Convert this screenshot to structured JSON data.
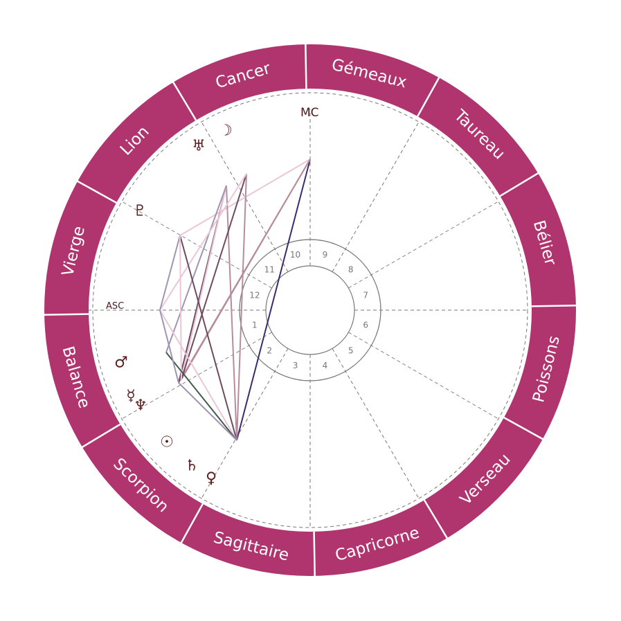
{
  "chart": {
    "ring_color": "#b0356f",
    "signs": [
      "Vierge",
      "Lion",
      "Cancer",
      "Gémeaux",
      "Taureau",
      "Bélier",
      "Poissons",
      "Verseau",
      "Capricorne",
      "Sagittaire",
      "Scorpion",
      "Balance"
    ],
    "houses": [
      "1",
      "2",
      "3",
      "4",
      "5",
      "6",
      "7",
      "8",
      "9",
      "10",
      "11",
      "12"
    ],
    "angles": {
      "asc": "ASC",
      "mc": "MC"
    },
    "planets": [
      {
        "name": "moon",
        "glyph": "☽"
      },
      {
        "name": "uranus",
        "glyph": "♅"
      },
      {
        "name": "pluto",
        "glyph": "♇"
      },
      {
        "name": "mars",
        "glyph": "♂"
      },
      {
        "name": "mercury",
        "glyph": "☿"
      },
      {
        "name": "neptune",
        "glyph": "♆"
      },
      {
        "name": "sun",
        "glyph": "☉"
      },
      {
        "name": "saturn",
        "glyph": "♄"
      },
      {
        "name": "venus",
        "glyph": "♀"
      }
    ],
    "aspect_colors": {
      "pink": "#ebc6d6",
      "navy": "#3b2b6b",
      "mauve": "#b68c9c",
      "plum": "#6e4a5e",
      "lavender": "#9e94b4",
      "green": "#3f5a4c"
    }
  }
}
